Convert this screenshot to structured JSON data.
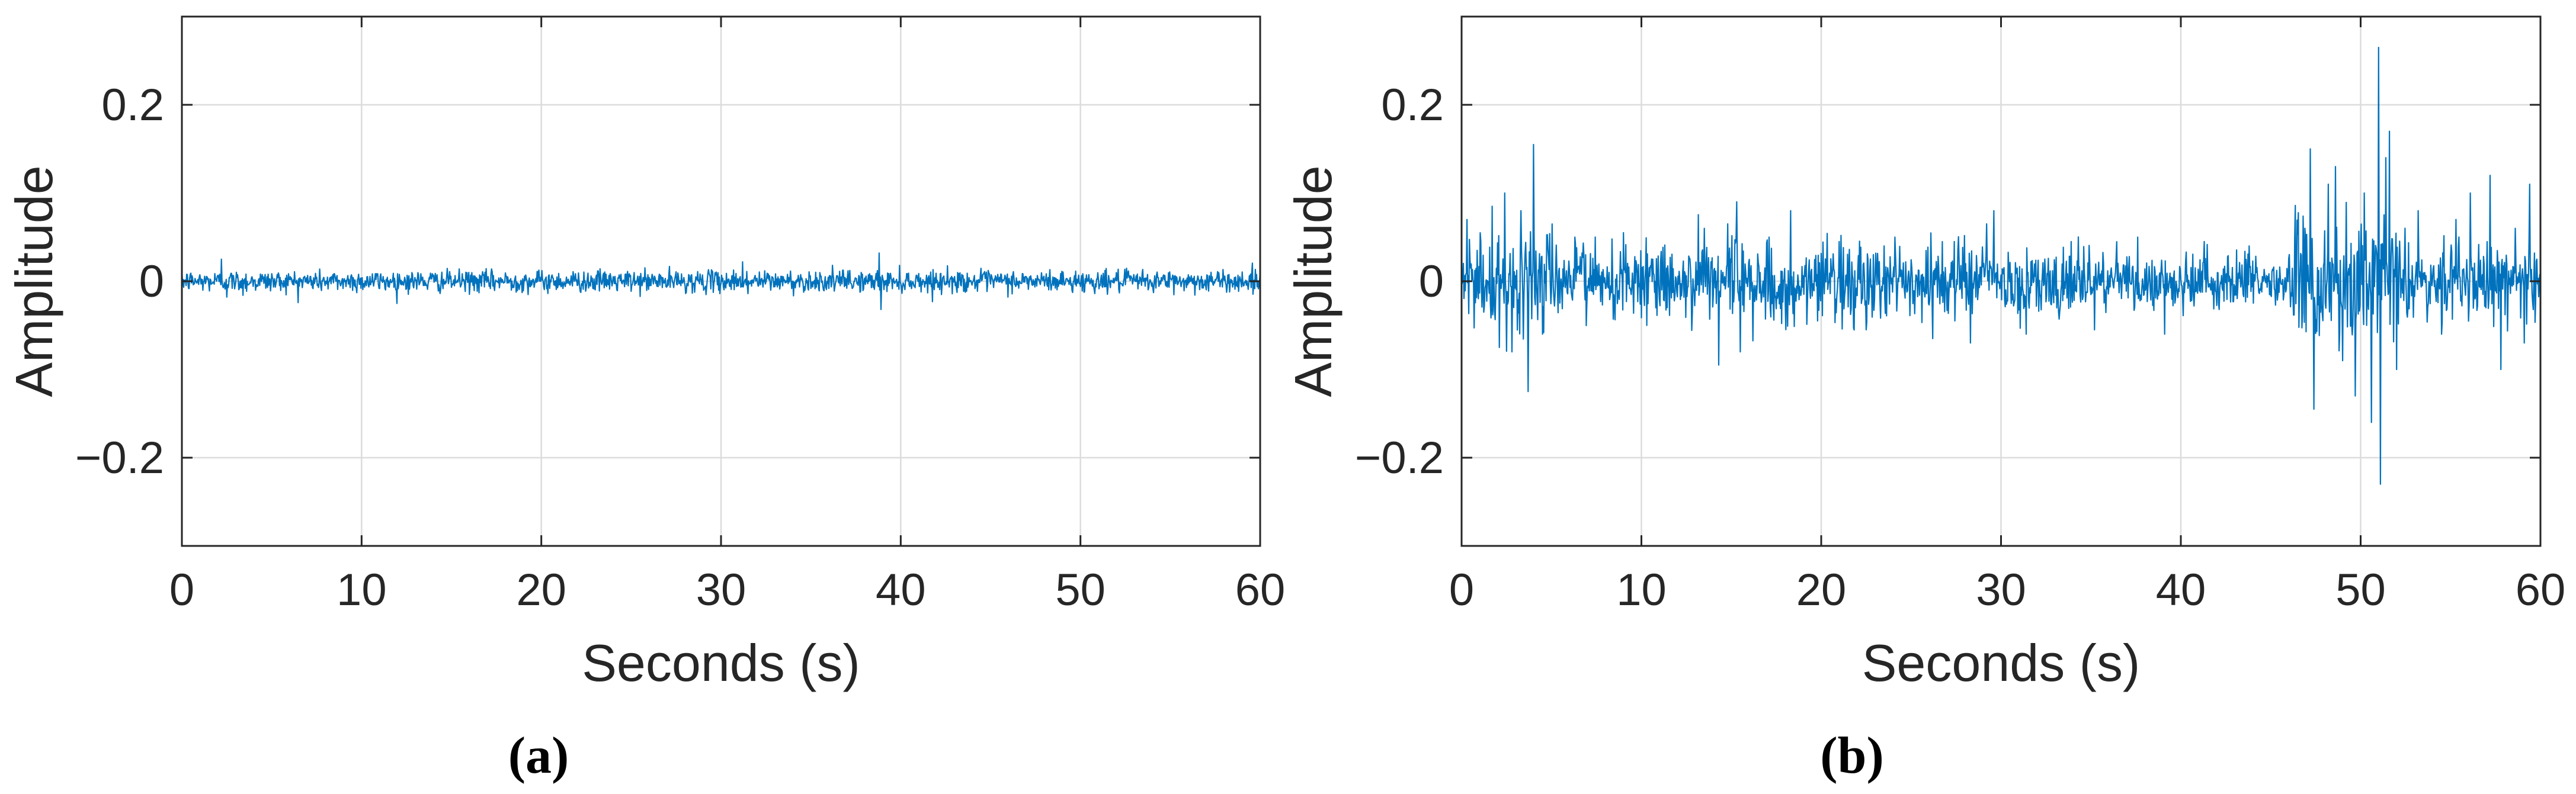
{
  "chart_data": [
    {
      "type": "line",
      "panel_label": "(a)",
      "xlabel": "Seconds (s)",
      "ylabel": "Amplitude",
      "xlim": [
        0,
        60
      ],
      "ylim": [
        -0.3,
        0.3
      ],
      "xticks": [
        0,
        10,
        20,
        30,
        40,
        50,
        60
      ],
      "xtick_labels": [
        "0",
        "10",
        "20",
        "30",
        "40",
        "50",
        "60"
      ],
      "yticks": [
        -0.2,
        0,
        0.2
      ],
      "ytick_labels": [
        "−0.2",
        "0",
        "0.2"
      ],
      "grid": true,
      "line_color": "#0072BD",
      "series": [
        {
          "values_description_free": true,
          "noise_level": 0.006,
          "spikes": [
            {
              "x": 2.2,
              "y": 0.025
            },
            {
              "x": 2.5,
              "y": -0.018
            },
            {
              "x": 3.4,
              "y": -0.016
            },
            {
              "x": 31.2,
              "y": 0.022
            },
            {
              "x": 31.5,
              "y": -0.014
            },
            {
              "x": 38.8,
              "y": 0.032
            },
            {
              "x": 38.9,
              "y": -0.032
            }
          ]
        }
      ]
    },
    {
      "type": "line",
      "panel_label": "(b)",
      "xlabel": "Seconds (s)",
      "ylabel": "Amplitude",
      "xlim": [
        0,
        60
      ],
      "ylim": [
        -0.3,
        0.3
      ],
      "xticks": [
        0,
        10,
        20,
        30,
        40,
        50,
        60
      ],
      "xtick_labels": [
        "0",
        "10",
        "20",
        "30",
        "40",
        "50",
        "60"
      ],
      "yticks": [
        -0.2,
        0,
        0.2
      ],
      "ytick_labels": [
        "−0.2",
        "0",
        "0.2"
      ],
      "grid": true,
      "line_color": "#0072BD",
      "series": [
        {
          "noise_level": 0.02,
          "spikes": [
            {
              "x": 0.3,
              "y": 0.07
            },
            {
              "x": 1.7,
              "y": 0.085
            },
            {
              "x": 2.1,
              "y": -0.075
            },
            {
              "x": 2.4,
              "y": 0.1
            },
            {
              "x": 2.8,
              "y": -0.08
            },
            {
              "x": 3.3,
              "y": 0.08
            },
            {
              "x": 3.7,
              "y": -0.125
            },
            {
              "x": 4.0,
              "y": 0.155
            },
            {
              "x": 4.5,
              "y": -0.06
            },
            {
              "x": 6.3,
              "y": 0.05
            },
            {
              "x": 9.0,
              "y": 0.055
            },
            {
              "x": 10.3,
              "y": -0.05
            },
            {
              "x": 13.5,
              "y": 0.06
            },
            {
              "x": 14.3,
              "y": -0.095
            },
            {
              "x": 14.8,
              "y": 0.065
            },
            {
              "x": 15.3,
              "y": 0.09
            },
            {
              "x": 15.5,
              "y": -0.08
            },
            {
              "x": 17.1,
              "y": 0.05
            },
            {
              "x": 18.3,
              "y": 0.08
            },
            {
              "x": 19.8,
              "y": -0.045
            },
            {
              "x": 21.0,
              "y": 0.045
            },
            {
              "x": 22.5,
              "y": -0.055
            },
            {
              "x": 24.1,
              "y": 0.05
            },
            {
              "x": 26.2,
              "y": -0.065
            },
            {
              "x": 27.4,
              "y": 0.045
            },
            {
              "x": 28.3,
              "y": -0.07
            },
            {
              "x": 29.2,
              "y": 0.065
            },
            {
              "x": 29.6,
              "y": 0.08
            },
            {
              "x": 31.4,
              "y": -0.06
            },
            {
              "x": 33.9,
              "y": 0.045
            },
            {
              "x": 35.2,
              "y": -0.055
            },
            {
              "x": 37.6,
              "y": 0.05
            },
            {
              "x": 39.1,
              "y": -0.06
            },
            {
              "x": 41.3,
              "y": 0.045
            },
            {
              "x": 43.8,
              "y": 0.04
            },
            {
              "x": 46.9,
              "y": 0.06
            },
            {
              "x": 47.2,
              "y": 0.15
            },
            {
              "x": 47.4,
              "y": -0.145
            },
            {
              "x": 48.2,
              "y": 0.11
            },
            {
              "x": 48.6,
              "y": 0.13
            },
            {
              "x": 49.0,
              "y": -0.09
            },
            {
              "x": 49.7,
              "y": -0.13
            },
            {
              "x": 50.2,
              "y": 0.1
            },
            {
              "x": 50.6,
              "y": -0.16
            },
            {
              "x": 51.0,
              "y": 0.265
            },
            {
              "x": 51.1,
              "y": -0.23
            },
            {
              "x": 51.4,
              "y": 0.14
            },
            {
              "x": 51.6,
              "y": 0.17
            },
            {
              "x": 52.0,
              "y": -0.1
            },
            {
              "x": 53.2,
              "y": 0.08
            },
            {
              "x": 54.5,
              "y": -0.06
            },
            {
              "x": 55.3,
              "y": 0.07
            },
            {
              "x": 56.1,
              "y": 0.1
            },
            {
              "x": 57.2,
              "y": 0.12
            },
            {
              "x": 57.8,
              "y": -0.1
            },
            {
              "x": 58.6,
              "y": 0.06
            },
            {
              "x": 59.1,
              "y": -0.07
            },
            {
              "x": 59.4,
              "y": 0.11
            }
          ]
        }
      ]
    }
  ]
}
